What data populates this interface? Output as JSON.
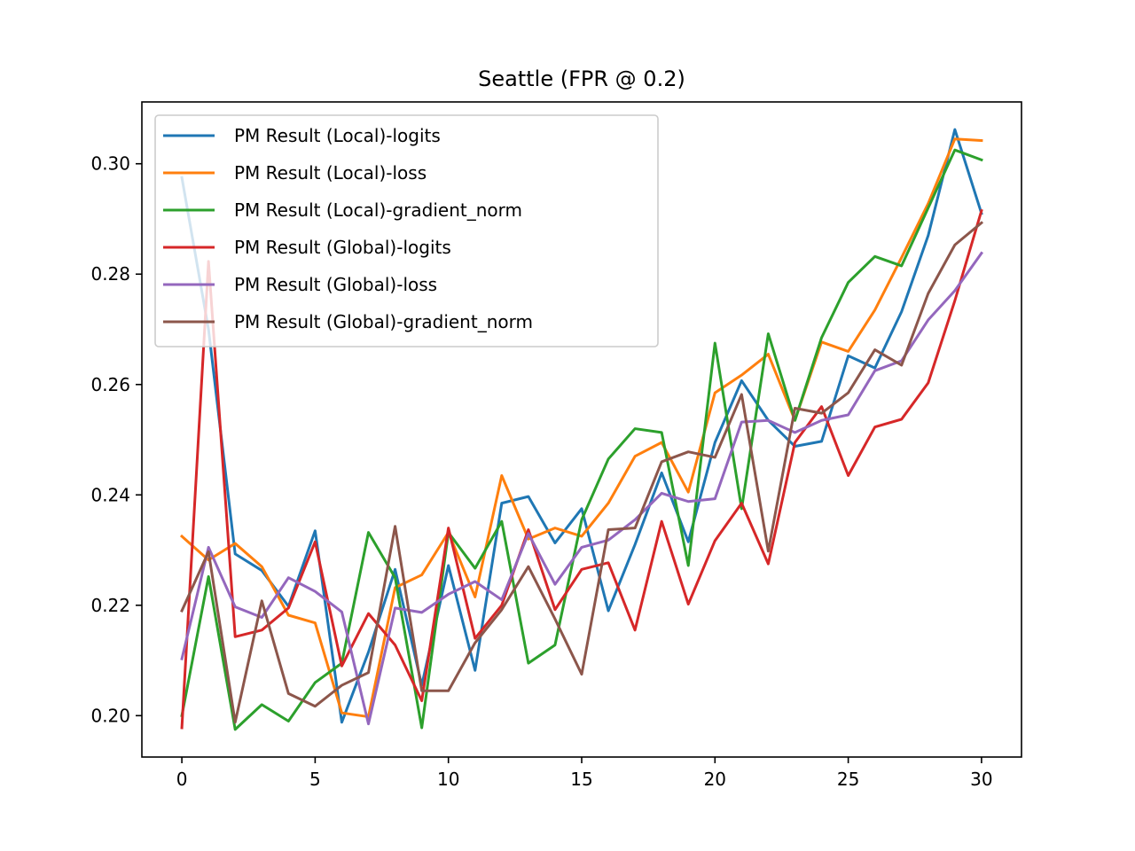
{
  "chart_data": {
    "type": "line",
    "title": "Seattle (FPR @ 0.2)",
    "xlabel": "",
    "ylabel": "",
    "xlim": [
      -1.5,
      31.5
    ],
    "ylim": [
      0.1925,
      0.3112
    ],
    "xticks": [
      0,
      5,
      10,
      15,
      20,
      25,
      30
    ],
    "xtick_labels": [
      "0",
      "5",
      "10",
      "15",
      "20",
      "25",
      "30"
    ],
    "yticks": [
      0.2,
      0.22,
      0.24,
      0.26,
      0.28,
      0.3
    ],
    "ytick_labels": [
      "0.20",
      "0.22",
      "0.24",
      "0.26",
      "0.28",
      "0.30"
    ],
    "grid": false,
    "legend_position": "top-left",
    "x": [
      0,
      1,
      2,
      3,
      4,
      5,
      6,
      7,
      8,
      9,
      10,
      11,
      12,
      13,
      14,
      15,
      16,
      17,
      18,
      19,
      20,
      21,
      22,
      23,
      24,
      25,
      26,
      27,
      28,
      29,
      30
    ],
    "series": [
      {
        "name": "PM Result (Local)-logits",
        "color": "#1f77b4",
        "values": [
          0.2975,
          0.27,
          0.2293,
          0.2263,
          0.2198,
          0.2335,
          0.1988,
          0.2115,
          0.2265,
          0.2055,
          0.2272,
          0.2082,
          0.2385,
          0.2397,
          0.2313,
          0.2375,
          0.219,
          0.231,
          0.244,
          0.2315,
          0.2495,
          0.2607,
          0.2535,
          0.2488,
          0.2497,
          0.2652,
          0.263,
          0.2732,
          0.287,
          0.3062,
          0.291
        ]
      },
      {
        "name": "PM Result (Local)-loss",
        "color": "#ff7f0e",
        "values": [
          0.2325,
          0.2282,
          0.2312,
          0.227,
          0.2182,
          0.2168,
          0.2005,
          0.1998,
          0.2232,
          0.2255,
          0.2332,
          0.2215,
          0.2435,
          0.232,
          0.234,
          0.2325,
          0.2385,
          0.247,
          0.2495,
          0.2405,
          0.2585,
          0.2617,
          0.2655,
          0.2535,
          0.2677,
          0.266,
          0.2735,
          0.283,
          0.2928,
          0.3045,
          0.3042
        ]
      },
      {
        "name": "PM Result (Local)-gradient_norm",
        "color": "#2ca02c",
        "values": [
          0.2,
          0.2252,
          0.1975,
          0.202,
          0.199,
          0.206,
          0.2095,
          0.2332,
          0.225,
          0.1978,
          0.2332,
          0.2267,
          0.2352,
          0.2095,
          0.2128,
          0.2355,
          0.2465,
          0.252,
          0.2513,
          0.2272,
          0.2675,
          0.2375,
          0.2692,
          0.2535,
          0.2685,
          0.2785,
          0.2832,
          0.2815,
          0.292,
          0.3025,
          0.3007
        ]
      },
      {
        "name": "PM Result (Global)-logits",
        "color": "#d62728",
        "values": [
          0.1978,
          0.2823,
          0.2143,
          0.2155,
          0.2195,
          0.2315,
          0.209,
          0.2185,
          0.2128,
          0.2027,
          0.234,
          0.214,
          0.22,
          0.2337,
          0.2192,
          0.2265,
          0.2277,
          0.2155,
          0.2352,
          0.2202,
          0.2317,
          0.2385,
          0.2275,
          0.2495,
          0.256,
          0.2435,
          0.2523,
          0.2537,
          0.2603,
          0.2752,
          0.2915
        ]
      },
      {
        "name": "PM Result (Global)-loss",
        "color": "#9467bd",
        "values": [
          0.2103,
          0.2305,
          0.2197,
          0.2178,
          0.225,
          0.2225,
          0.2188,
          0.1985,
          0.2195,
          0.2187,
          0.222,
          0.2243,
          0.221,
          0.233,
          0.2238,
          0.2305,
          0.2318,
          0.2355,
          0.2403,
          0.2388,
          0.2393,
          0.2532,
          0.2535,
          0.2513,
          0.2535,
          0.2545,
          0.2625,
          0.2643,
          0.2717,
          0.277,
          0.2838
        ]
      },
      {
        "name": "PM Result (Global)-gradient_norm",
        "color": "#8c564b",
        "values": [
          0.219,
          0.2297,
          0.1988,
          0.2208,
          0.204,
          0.2017,
          0.2055,
          0.2078,
          0.2343,
          0.2045,
          0.2045,
          0.2132,
          0.2192,
          0.227,
          0.2175,
          0.2075,
          0.2337,
          0.234,
          0.246,
          0.2478,
          0.2468,
          0.2582,
          0.2298,
          0.2557,
          0.2548,
          0.2585,
          0.2663,
          0.2635,
          0.2765,
          0.2853,
          0.2893
        ]
      }
    ]
  }
}
